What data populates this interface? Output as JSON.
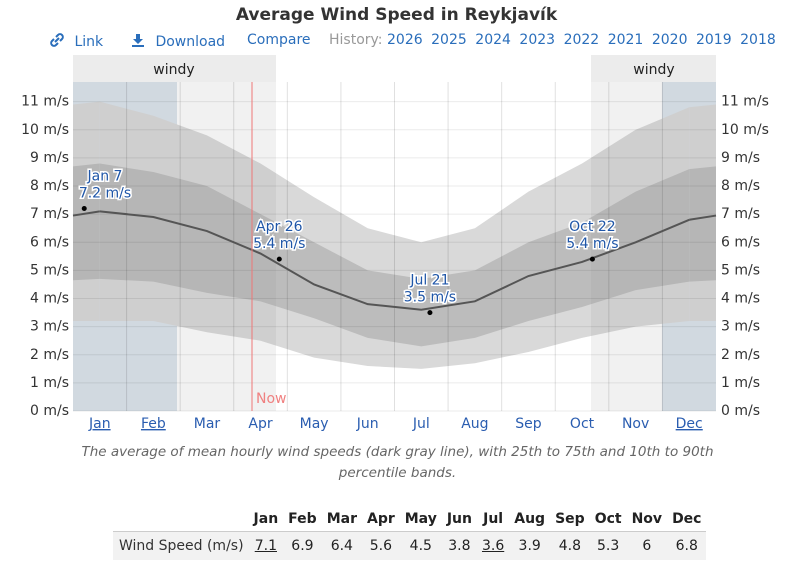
{
  "chart_data": {
    "type": "band-line",
    "title": "Average Wind Speed in Reykjavík",
    "nav": {
      "link": "Link",
      "download": "Download",
      "compare": "Compare",
      "history": "History:",
      "years": [
        "2026",
        "2025",
        "2024",
        "2023",
        "2022",
        "2021",
        "2020",
        "2019",
        "2018"
      ]
    },
    "categories": [
      "Jan",
      "Feb",
      "Mar",
      "Apr",
      "May",
      "Jun",
      "Jul",
      "Aug",
      "Sep",
      "Oct",
      "Nov",
      "Dec"
    ],
    "mean": {
      "color": "#555555",
      "values": [
        7.1,
        6.9,
        6.4,
        5.6,
        4.5,
        3.8,
        3.6,
        3.9,
        4.8,
        5.3,
        6.0,
        6.8
      ]
    },
    "p10": {
      "values": [
        3.2,
        3.2,
        2.8,
        2.5,
        1.9,
        1.6,
        1.5,
        1.7,
        2.1,
        2.6,
        3.0,
        3.2
      ]
    },
    "p25": {
      "values": [
        4.7,
        4.6,
        4.2,
        3.9,
        3.3,
        2.6,
        2.3,
        2.6,
        3.2,
        3.7,
        4.3,
        4.6
      ]
    },
    "p75": {
      "values": [
        8.8,
        8.5,
        8.0,
        7.0,
        6.0,
        5.0,
        4.7,
        5.0,
        6.0,
        6.7,
        7.8,
        8.6
      ]
    },
    "p90": {
      "values": [
        11.0,
        10.5,
        9.8,
        8.8,
        7.6,
        6.5,
        6.0,
        6.5,
        7.8,
        8.8,
        10.0,
        10.8
      ]
    },
    "outer_band_color": "#d9d9d9",
    "inner_band_color": "#bcbcbc",
    "ylim": [
      0,
      11.7
    ],
    "yticks": [
      {
        "value": 0,
        "label": "0 m/s"
      },
      {
        "value": 1,
        "label": "1 m/s"
      },
      {
        "value": 2,
        "label": "2 m/s"
      },
      {
        "value": 3,
        "label": "3 m/s"
      },
      {
        "value": 4,
        "label": "4 m/s"
      },
      {
        "value": 5,
        "label": "5 m/s"
      },
      {
        "value": 6,
        "label": "6 m/s"
      },
      {
        "value": 7,
        "label": "7 m/s"
      },
      {
        "value": 8,
        "label": "8 m/s"
      },
      {
        "value": 9,
        "label": "9 m/s"
      },
      {
        "value": 10,
        "label": "10 m/s"
      },
      {
        "value": 11,
        "label": "11 m/s"
      }
    ],
    "grid": true,
    "season_label": "windy",
    "now_label": "Now",
    "annotations": [
      {
        "date": "Jan 7",
        "value": 7.2,
        "label": "7.2 m/s"
      },
      {
        "date": "Apr 26",
        "value": 5.4,
        "label": "5.4 m/s"
      },
      {
        "date": "Jul 21",
        "value": 3.5,
        "label": "3.5 m/s"
      },
      {
        "date": "Oct 22",
        "value": 5.4,
        "label": "5.4 m/s"
      }
    ],
    "caption": "The average of mean hourly wind speeds (dark gray line), with 25th to 75th and 10th to 90th percentile bands.",
    "table": {
      "row_label": "Wind Speed (m/s)"
    }
  }
}
